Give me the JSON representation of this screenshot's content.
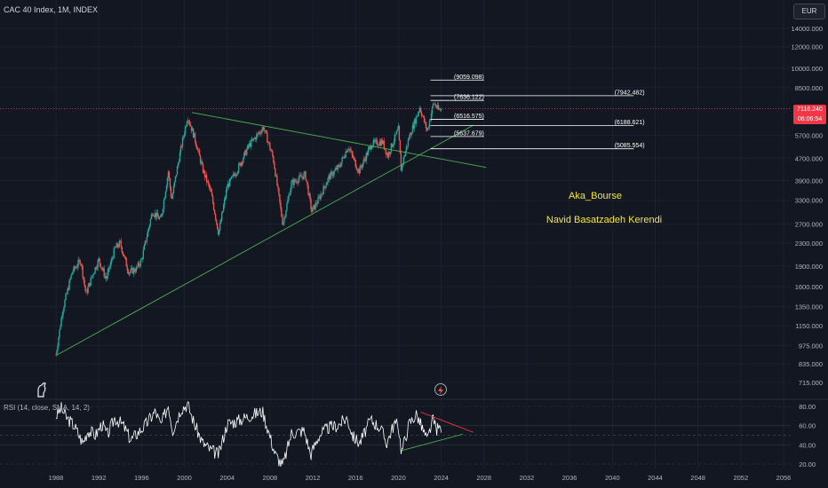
{
  "header": {
    "symbol_line": "CAC 40 Index, 1M, INDEX",
    "currency_button": "EUR",
    "rsi_label": "RSI (14, close, SMA, 14, 2)"
  },
  "price_tag": {
    "price": "7116.240",
    "countdown": "06:06:54"
  },
  "annotations": {
    "line1": "Aka_Bourse",
    "line2": "Navid Basatzadeh Kerendi"
  },
  "colors": {
    "background": "#131722",
    "up": "#26a69a",
    "down": "#ef5350",
    "trendline": "#4caf50",
    "level_line": "#ffffff",
    "price_line": "#f23645",
    "rsi_line": "#ffffff",
    "rsi_wedge_top": "#f23645",
    "rsi_wedge_bottom": "#4caf50",
    "author_text": "#f5e642"
  },
  "chart_data": {
    "type": "candlestick",
    "log_scale": true,
    "x_ticks": [
      "1988",
      "1992",
      "1996",
      "2000",
      "2004",
      "2008",
      "2012",
      "2016",
      "2020",
      "2024",
      "2028",
      "2032",
      "2036",
      "2040",
      "2044",
      "2048",
      "2052",
      "2056"
    ],
    "y_ticks": [
      "14000.000",
      "12000.000",
      "10000.000",
      "8500.000",
      "7116.240",
      "5700.000",
      "4700.000",
      "3900.000",
      "3300.000",
      "2700.000",
      "2300.000",
      "1900.000",
      "1600.000",
      "1350.000",
      "1150.000",
      "975.000",
      "835.000",
      "715.000"
    ],
    "price_path": [
      [
        1988.0,
        900
      ],
      [
        1988.6,
        1300
      ],
      [
        1989.5,
        1800
      ],
      [
        1990.3,
        2000
      ],
      [
        1990.8,
        1500
      ],
      [
        1991.5,
        1800
      ],
      [
        1992.0,
        2000
      ],
      [
        1992.7,
        1700
      ],
      [
        1993.5,
        2200
      ],
      [
        1994.0,
        2300
      ],
      [
        1994.8,
        1800
      ],
      [
        1995.5,
        1850
      ],
      [
        1996.0,
        2000
      ],
      [
        1997.0,
        3000
      ],
      [
        1997.8,
        2800
      ],
      [
        1998.5,
        4200
      ],
      [
        1998.8,
        3300
      ],
      [
        1999.5,
        4700
      ],
      [
        2000.3,
        6700
      ],
      [
        2001.0,
        5500
      ],
      [
        2001.7,
        4300
      ],
      [
        2002.5,
        3500
      ],
      [
        2003.2,
        2500
      ],
      [
        2004.0,
        3700
      ],
      [
        2005.0,
        4300
      ],
      [
        2006.0,
        5200
      ],
      [
        2007.4,
        6100
      ],
      [
        2008.3,
        4700
      ],
      [
        2009.2,
        2700
      ],
      [
        2010.0,
        3800
      ],
      [
        2011.3,
        4100
      ],
      [
        2011.9,
        3000
      ],
      [
        2012.5,
        3300
      ],
      [
        2013.5,
        4000
      ],
      [
        2014.5,
        4400
      ],
      [
        2015.3,
        5200
      ],
      [
        2016.3,
        4200
      ],
      [
        2017.5,
        5300
      ],
      [
        2018.5,
        5400
      ],
      [
        2019.0,
        4800
      ],
      [
        2020.0,
        6000
      ],
      [
        2020.25,
        4300
      ],
      [
        2021.0,
        5600
      ],
      [
        2022.0,
        7200
      ],
      [
        2022.7,
        5900
      ],
      [
        2023.3,
        7500
      ],
      [
        2023.8,
        7000
      ],
      [
        2024.0,
        7116
      ]
    ],
    "levels": [
      {
        "value": 9059.098,
        "label": "(9059.098)"
      },
      {
        "value": 7942.482,
        "label": "(7942.482)"
      },
      {
        "value": 7636.122,
        "label": "(7636.122)"
      },
      {
        "value": 6516.575,
        "label": "(6516.575)"
      },
      {
        "value": 6188.621,
        "label": "(6188.621)"
      },
      {
        "value": 5637.679,
        "label": "(5637.679)"
      },
      {
        "value": 5085.554,
        "label": "(5085.554)"
      }
    ],
    "rsi_ticks": [
      "80.00",
      "60.00",
      "40.00",
      "20.00"
    ],
    "rsi_path": [
      [
        1988.0,
        70
      ],
      [
        1988.5,
        78
      ],
      [
        1989.0,
        68
      ],
      [
        1989.7,
        60
      ],
      [
        1990.5,
        42
      ],
      [
        1991.0,
        55
      ],
      [
        1991.7,
        50
      ],
      [
        1992.3,
        62
      ],
      [
        1992.8,
        50
      ],
      [
        1993.5,
        68
      ],
      [
        1994.3,
        60
      ],
      [
        1995.0,
        45
      ],
      [
        1995.6,
        52
      ],
      [
        1996.3,
        60
      ],
      [
        1997.3,
        75
      ],
      [
        1997.8,
        60
      ],
      [
        1998.5,
        82
      ],
      [
        1998.9,
        55
      ],
      [
        1999.7,
        78
      ],
      [
        2000.3,
        82
      ],
      [
        2001.0,
        60
      ],
      [
        2001.7,
        42
      ],
      [
        2002.4,
        35
      ],
      [
        2003.2,
        30
      ],
      [
        2004.0,
        62
      ],
      [
        2005.0,
        65
      ],
      [
        2006.0,
        70
      ],
      [
        2007.3,
        75
      ],
      [
        2007.7,
        60
      ],
      [
        2008.5,
        30
      ],
      [
        2009.2,
        18
      ],
      [
        2010.0,
        52
      ],
      [
        2011.2,
        55
      ],
      [
        2011.8,
        30
      ],
      [
        2012.6,
        50
      ],
      [
        2013.5,
        58
      ],
      [
        2014.3,
        60
      ],
      [
        2015.2,
        68
      ],
      [
        2015.8,
        48
      ],
      [
        2016.4,
        42
      ],
      [
        2017.4,
        66
      ],
      [
        2018.3,
        58
      ],
      [
        2018.9,
        42
      ],
      [
        2019.6,
        62
      ],
      [
        2020.0,
        60
      ],
      [
        2020.3,
        32
      ],
      [
        2021.0,
        62
      ],
      [
        2021.7,
        72
      ],
      [
        2022.2,
        58
      ],
      [
        2022.7,
        44
      ],
      [
        2023.2,
        66
      ],
      [
        2023.6,
        56
      ],
      [
        2024.0,
        58
      ]
    ]
  }
}
